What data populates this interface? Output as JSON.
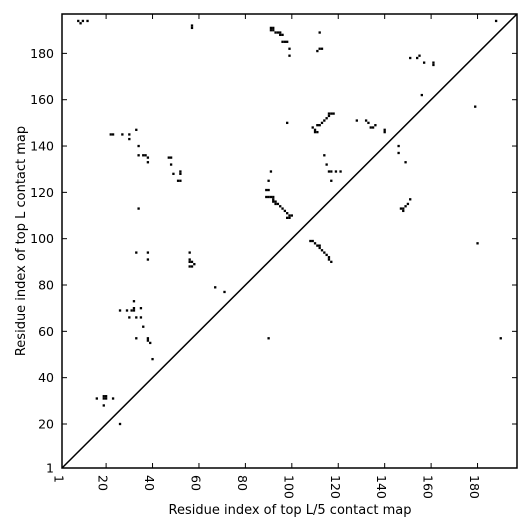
{
  "chart_data": {
    "type": "heatmap",
    "title": "",
    "xlabel": "Residue index of top L/5 contact map",
    "ylabel": "Residue index of top L contact map",
    "xlim": [
      1,
      197
    ],
    "ylim": [
      1,
      197
    ],
    "x_ticks": [
      1,
      20,
      40,
      60,
      80,
      100,
      120,
      140,
      160,
      180
    ],
    "y_ticks": [
      1,
      20,
      40,
      60,
      80,
      100,
      120,
      140,
      160,
      180
    ],
    "grid": false,
    "legend": "none",
    "diagonal": true,
    "cell_color": "#000000",
    "upper_triangle_top_L5_contacts": [
      [
        10,
        194
      ],
      [
        12,
        194
      ],
      [
        57,
        191
      ],
      [
        57,
        192
      ],
      [
        91,
        191
      ],
      [
        91,
        190
      ],
      [
        92,
        190
      ],
      [
        92,
        191
      ],
      [
        93,
        189
      ],
      [
        94,
        189
      ],
      [
        95,
        189
      ],
      [
        95,
        188
      ],
      [
        96,
        188
      ],
      [
        96,
        185
      ],
      [
        97,
        185
      ],
      [
        98,
        185
      ],
      [
        99,
        182
      ],
      [
        99,
        179
      ],
      [
        112,
        189
      ],
      [
        112,
        182
      ],
      [
        113,
        182
      ],
      [
        155,
        179
      ],
      [
        151,
        178
      ],
      [
        154,
        178
      ],
      [
        157,
        176
      ],
      [
        161,
        176
      ],
      [
        161,
        175
      ],
      [
        179,
        157
      ],
      [
        180,
        98
      ],
      [
        188,
        194
      ],
      [
        190,
        57
      ],
      [
        111,
        181
      ],
      [
        156,
        162
      ]
    ],
    "lower_triangle_top_L_contacts": [
      [
        8,
        194
      ],
      [
        9,
        193
      ],
      [
        33,
        147
      ],
      [
        22,
        145
      ],
      [
        23,
        145
      ],
      [
        27,
        145
      ],
      [
        30,
        145
      ],
      [
        30,
        143
      ],
      [
        34,
        140
      ],
      [
        36,
        136
      ],
      [
        37,
        136
      ],
      [
        38,
        135
      ],
      [
        38,
        133
      ],
      [
        34,
        136
      ],
      [
        47,
        135
      ],
      [
        48,
        135
      ],
      [
        48,
        132
      ],
      [
        49,
        128
      ],
      [
        52,
        129
      ],
      [
        52,
        128
      ],
      [
        51,
        125
      ],
      [
        52,
        125
      ],
      [
        34,
        113
      ],
      [
        33,
        94
      ],
      [
        38,
        94
      ],
      [
        38,
        91
      ],
      [
        56,
        94
      ],
      [
        56,
        91
      ],
      [
        56,
        90
      ],
      [
        57,
        90
      ],
      [
        57,
        88
      ],
      [
        58,
        89
      ],
      [
        56,
        88
      ],
      [
        32,
        73
      ],
      [
        32,
        70
      ],
      [
        31,
        69
      ],
      [
        32,
        69
      ],
      [
        35,
        70
      ],
      [
        26,
        69
      ],
      [
        29,
        69
      ],
      [
        30,
        66
      ],
      [
        33,
        66
      ],
      [
        35,
        66
      ],
      [
        36,
        62
      ],
      [
        33,
        57
      ],
      [
        38,
        57
      ],
      [
        38,
        56
      ],
      [
        39,
        55
      ],
      [
        40,
        48
      ],
      [
        16,
        31
      ],
      [
        19,
        32
      ],
      [
        19,
        31
      ],
      [
        20,
        31
      ],
      [
        20,
        32
      ],
      [
        23,
        31
      ],
      [
        19,
        28
      ],
      [
        26,
        20
      ],
      [
        67,
        79
      ],
      [
        71,
        77
      ],
      [
        89,
        121
      ],
      [
        90,
        121
      ],
      [
        90,
        125
      ],
      [
        91,
        129
      ],
      [
        89,
        118
      ],
      [
        90,
        118
      ],
      [
        91,
        118
      ],
      [
        92,
        117
      ],
      [
        92,
        118
      ],
      [
        93,
        116
      ],
      [
        93,
        115
      ],
      [
        94,
        115
      ],
      [
        95,
        114
      ],
      [
        96,
        113
      ],
      [
        97,
        112
      ],
      [
        98,
        111
      ],
      [
        99,
        110
      ],
      [
        98,
        109
      ],
      [
        100,
        110
      ],
      [
        99,
        109
      ],
      [
        92,
        116
      ],
      [
        90,
        57
      ],
      [
        108,
        99
      ],
      [
        109,
        99
      ],
      [
        110,
        98
      ],
      [
        111,
        97
      ],
      [
        112,
        97
      ],
      [
        112,
        96
      ],
      [
        113,
        95
      ],
      [
        114,
        94
      ],
      [
        115,
        93
      ],
      [
        116,
        92
      ],
      [
        116,
        91
      ],
      [
        117,
        90
      ],
      [
        109,
        148
      ],
      [
        110,
        146
      ],
      [
        111,
        149
      ],
      [
        112,
        149
      ],
      [
        113,
        150
      ],
      [
        114,
        151
      ],
      [
        115,
        152
      ],
      [
        116,
        153
      ],
      [
        117,
        154
      ],
      [
        118,
        154
      ],
      [
        116,
        154
      ],
      [
        110,
        147
      ],
      [
        111,
        146
      ],
      [
        114,
        136
      ],
      [
        115,
        132
      ],
      [
        116,
        129
      ],
      [
        117,
        129
      ],
      [
        119,
        129
      ],
      [
        117,
        125
      ],
      [
        121,
        129
      ],
      [
        128,
        151
      ],
      [
        132,
        151
      ],
      [
        133,
        150
      ],
      [
        134,
        148
      ],
      [
        135,
        148
      ],
      [
        136,
        149
      ],
      [
        140,
        147
      ],
      [
        140,
        146
      ],
      [
        146,
        140
      ],
      [
        146,
        137
      ],
      [
        147,
        113
      ],
      [
        148,
        112
      ],
      [
        149,
        114
      ],
      [
        150,
        115
      ],
      [
        151,
        117
      ],
      [
        148,
        113
      ],
      [
        149,
        133
      ],
      [
        98,
        150
      ]
    ]
  }
}
